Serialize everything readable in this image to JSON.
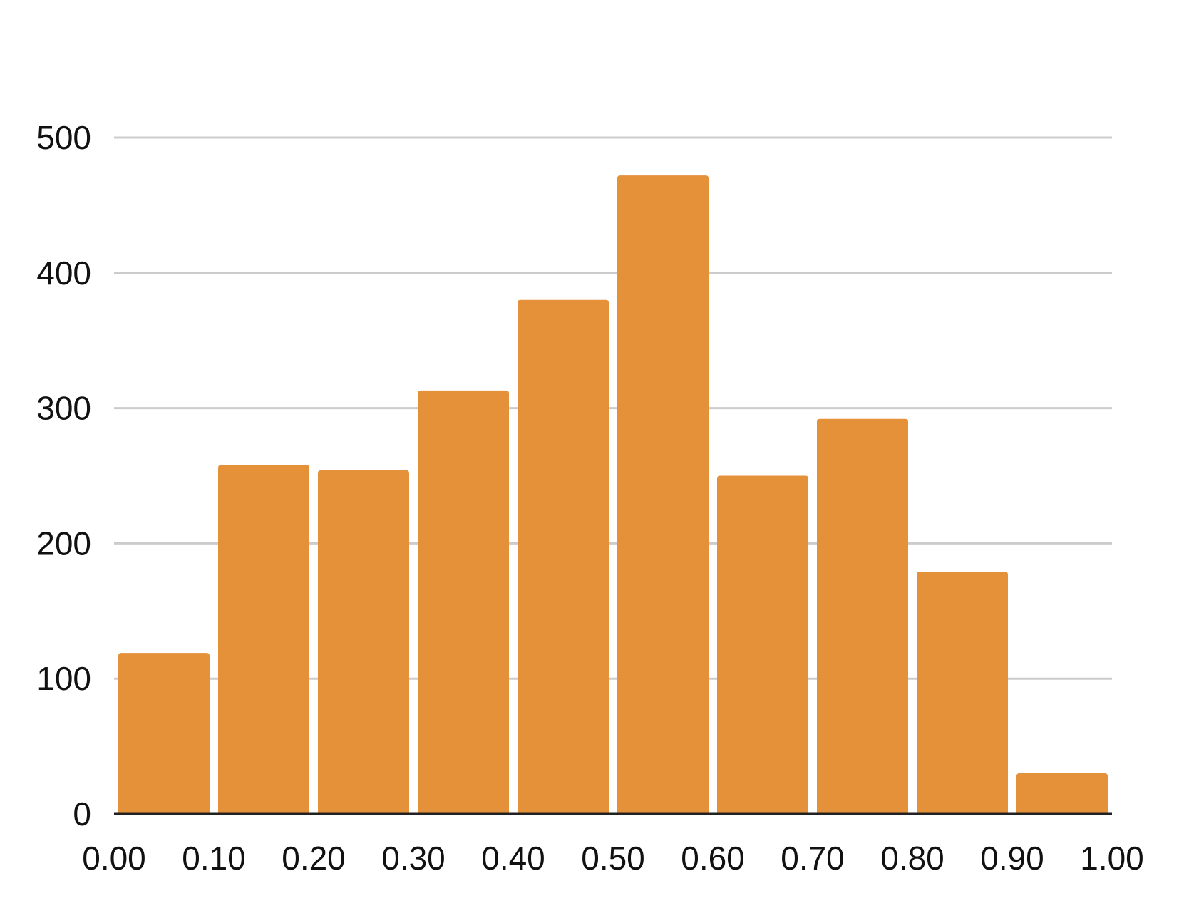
{
  "chart_data": {
    "type": "bar",
    "subtype": "histogram",
    "bins": [
      {
        "from": 0.0,
        "to": 0.1,
        "value": 119
      },
      {
        "from": 0.1,
        "to": 0.2,
        "value": 258
      },
      {
        "from": 0.2,
        "to": 0.3,
        "value": 254
      },
      {
        "from": 0.3,
        "to": 0.4,
        "value": 313
      },
      {
        "from": 0.4,
        "to": 0.5,
        "value": 380
      },
      {
        "from": 0.5,
        "to": 0.6,
        "value": 472
      },
      {
        "from": 0.6,
        "to": 0.7,
        "value": 250
      },
      {
        "from": 0.7,
        "to": 0.8,
        "value": 292
      },
      {
        "from": 0.8,
        "to": 0.9,
        "value": 179
      },
      {
        "from": 0.9,
        "to": 1.0,
        "value": 30
      }
    ],
    "values": [
      119,
      258,
      254,
      313,
      380,
      472,
      250,
      292,
      179,
      30
    ],
    "xlim": [
      0.0,
      1.0
    ],
    "ylim": [
      0,
      500
    ],
    "x_ticks": [
      "0.00",
      "0.10",
      "0.20",
      "0.30",
      "0.40",
      "0.50",
      "0.60",
      "0.70",
      "0.80",
      "0.90",
      "1.00"
    ],
    "y_ticks": [
      "0",
      "100",
      "200",
      "300",
      "400",
      "500"
    ],
    "title": "",
    "xlabel": "",
    "ylabel": "",
    "grid": "horizontal",
    "legend": "none",
    "colors": {
      "bar": "#E5913A",
      "grid": "#CCCCCC",
      "axis": "#222222",
      "text": "#111111"
    }
  }
}
